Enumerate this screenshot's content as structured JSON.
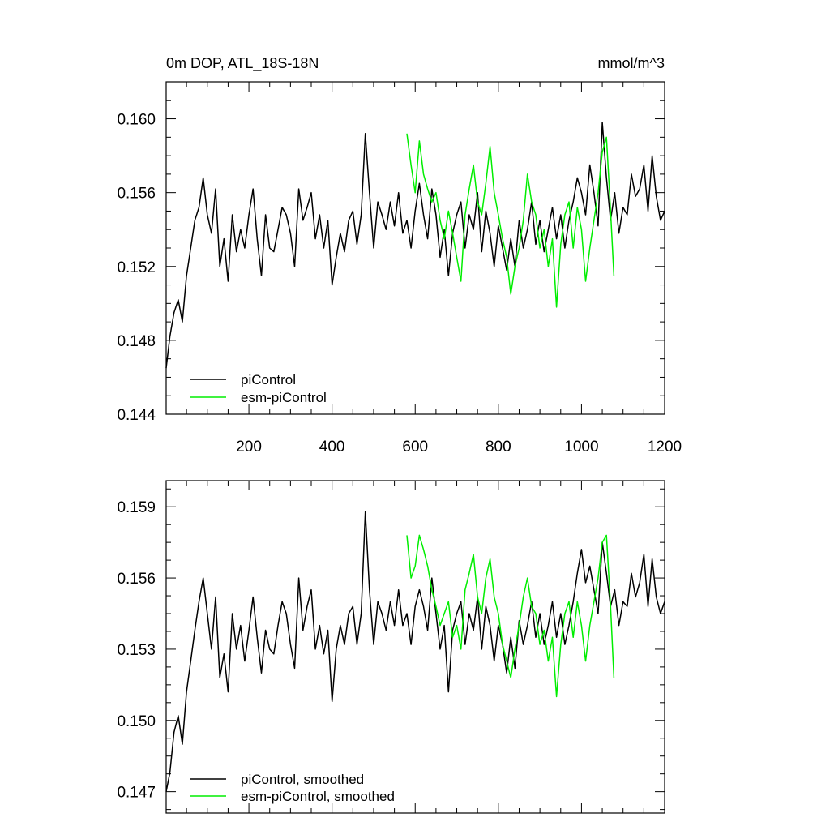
{
  "colors": {
    "piControl": "#000000",
    "esm_piControl": "#00ee00"
  },
  "chart_data": [
    {
      "type": "line",
      "title": "0m DOP, ATL_18S-18N",
      "units": "mmol/m^3",
      "xlim": [
        1,
        1200
      ],
      "ylim": [
        0.144,
        0.162
      ],
      "x_ticks": [
        200,
        400,
        600,
        800,
        1000,
        1200
      ],
      "x_tick_labels": [
        "200",
        "400",
        "600",
        "800",
        "1000",
        "1200"
      ],
      "y_ticks": [
        0.144,
        0.148,
        0.152,
        0.156,
        0.16
      ],
      "y_tick_labels": [
        "0.144",
        "0.148",
        "0.152",
        "0.156",
        "0.160"
      ],
      "legend_position": "bottom-left",
      "series": [
        {
          "name": "piControl",
          "color": "#000000",
          "x": [
            1,
            10,
            20,
            30,
            40,
            50,
            60,
            70,
            80,
            90,
            100,
            110,
            120,
            130,
            140,
            150,
            160,
            170,
            180,
            190,
            200,
            210,
            220,
            230,
            240,
            250,
            260,
            270,
            280,
            290,
            300,
            310,
            320,
            330,
            340,
            350,
            360,
            370,
            380,
            390,
            400,
            410,
            420,
            430,
            440,
            450,
            460,
            470,
            480,
            490,
            500,
            510,
            520,
            530,
            540,
            550,
            560,
            570,
            580,
            590,
            600,
            610,
            620,
            630,
            640,
            650,
            660,
            670,
            680,
            690,
            700,
            710,
            720,
            730,
            740,
            750,
            760,
            770,
            780,
            790,
            800,
            810,
            820,
            830,
            840,
            850,
            860,
            870,
            880,
            890,
            900,
            910,
            920,
            930,
            940,
            950,
            960,
            970,
            980,
            990,
            1000,
            1010,
            1020,
            1030,
            1040,
            1050,
            1060,
            1070,
            1080,
            1090,
            1100,
            1110,
            1120,
            1130,
            1140,
            1150,
            1160,
            1170,
            1180,
            1190,
            1200
          ],
          "y": [
            0.1465,
            0.1482,
            0.1495,
            0.1502,
            0.149,
            0.1515,
            0.153,
            0.1545,
            0.1552,
            0.1568,
            0.1548,
            0.1538,
            0.1562,
            0.152,
            0.1535,
            0.1512,
            0.1548,
            0.1528,
            0.154,
            0.153,
            0.1548,
            0.1562,
            0.1535,
            0.1515,
            0.1548,
            0.153,
            0.1528,
            0.154,
            0.1552,
            0.1548,
            0.1538,
            0.152,
            0.1562,
            0.1545,
            0.1552,
            0.156,
            0.1535,
            0.1548,
            0.153,
            0.1545,
            0.151,
            0.1525,
            0.1538,
            0.1528,
            0.1545,
            0.155,
            0.1532,
            0.1548,
            0.1592,
            0.156,
            0.153,
            0.1555,
            0.1548,
            0.154,
            0.1555,
            0.1542,
            0.156,
            0.1538,
            0.1545,
            0.153,
            0.155,
            0.1565,
            0.1548,
            0.1535,
            0.1562,
            0.1548,
            0.1525,
            0.154,
            0.1515,
            0.1538,
            0.1548,
            0.1555,
            0.153,
            0.1548,
            0.154,
            0.156,
            0.1528,
            0.155,
            0.1538,
            0.152,
            0.1542,
            0.153,
            0.1518,
            0.1535,
            0.152,
            0.1545,
            0.153,
            0.154,
            0.1555,
            0.1532,
            0.1545,
            0.1528,
            0.154,
            0.1552,
            0.1535,
            0.1548,
            0.153,
            0.1545,
            0.1555,
            0.1568,
            0.156,
            0.1548,
            0.1575,
            0.156,
            0.1542,
            0.1598,
            0.1568,
            0.1545,
            0.156,
            0.1538,
            0.1552,
            0.1548,
            0.157,
            0.1558,
            0.1562,
            0.1575,
            0.155,
            0.158,
            0.1558,
            0.1545,
            0.155
          ]
        },
        {
          "name": "esm-piControl",
          "color": "#00ee00",
          "x": [
            580,
            590,
            600,
            610,
            620,
            630,
            640,
            650,
            660,
            670,
            680,
            690,
            700,
            710,
            720,
            730,
            740,
            750,
            760,
            770,
            780,
            790,
            800,
            810,
            820,
            830,
            840,
            850,
            860,
            870,
            880,
            890,
            900,
            910,
            920,
            930,
            940,
            950,
            960,
            970,
            980,
            990,
            1000,
            1010,
            1020,
            1030,
            1040,
            1050,
            1060,
            1070,
            1078
          ],
          "y": [
            0.1592,
            0.1575,
            0.156,
            0.1588,
            0.157,
            0.1562,
            0.1555,
            0.156,
            0.1545,
            0.1535,
            0.155,
            0.1538,
            0.1525,
            0.1512,
            0.1548,
            0.1562,
            0.1575,
            0.1555,
            0.1548,
            0.1565,
            0.1585,
            0.156,
            0.1548,
            0.1535,
            0.1525,
            0.1505,
            0.152,
            0.153,
            0.1545,
            0.157,
            0.1555,
            0.1548,
            0.153,
            0.154,
            0.152,
            0.1535,
            0.1498,
            0.1532,
            0.1548,
            0.1555,
            0.153,
            0.1552,
            0.154,
            0.1512,
            0.153,
            0.1545,
            0.156,
            0.1582,
            0.159,
            0.155,
            0.1515
          ]
        }
      ]
    },
    {
      "type": "line",
      "xlim": [
        1,
        1200
      ],
      "ylim": [
        0.1461,
        0.1601
      ],
      "x_ticks": [
        200,
        400,
        600,
        800,
        1000,
        1200
      ],
      "y_ticks": [
        0.147,
        0.15,
        0.153,
        0.156,
        0.159
      ],
      "y_tick_labels": [
        "0.147",
        "0.150",
        "0.153",
        "0.156",
        "0.159"
      ],
      "legend_position": "bottom-left",
      "series": [
        {
          "name": "piControl, smoothed",
          "color": "#000000",
          "x": [
            1,
            10,
            20,
            30,
            40,
            50,
            60,
            70,
            80,
            90,
            100,
            110,
            120,
            130,
            140,
            150,
            160,
            170,
            180,
            190,
            200,
            210,
            220,
            230,
            240,
            250,
            260,
            270,
            280,
            290,
            300,
            310,
            320,
            330,
            340,
            350,
            360,
            370,
            380,
            390,
            400,
            410,
            420,
            430,
            440,
            450,
            460,
            470,
            480,
            490,
            500,
            510,
            520,
            530,
            540,
            550,
            560,
            570,
            580,
            590,
            600,
            610,
            620,
            630,
            640,
            650,
            660,
            670,
            680,
            690,
            700,
            710,
            720,
            730,
            740,
            750,
            760,
            770,
            780,
            790,
            800,
            810,
            820,
            830,
            840,
            850,
            860,
            870,
            880,
            890,
            900,
            910,
            920,
            930,
            940,
            950,
            960,
            970,
            980,
            990,
            1000,
            1010,
            1020,
            1030,
            1040,
            1050,
            1060,
            1070,
            1080,
            1090,
            1100,
            1110,
            1120,
            1130,
            1140,
            1150,
            1160,
            1170,
            1180,
            1190,
            1200
          ],
          "y": [
            0.147,
            0.1478,
            0.1495,
            0.1502,
            0.149,
            0.1512,
            0.1525,
            0.1538,
            0.155,
            0.156,
            0.1545,
            0.153,
            0.1552,
            0.1518,
            0.1528,
            0.1512,
            0.1545,
            0.153,
            0.154,
            0.1525,
            0.1538,
            0.1552,
            0.1535,
            0.152,
            0.1538,
            0.153,
            0.1528,
            0.154,
            0.155,
            0.1545,
            0.1532,
            0.1522,
            0.156,
            0.1538,
            0.1548,
            0.1555,
            0.153,
            0.154,
            0.1528,
            0.1538,
            0.1508,
            0.153,
            0.154,
            0.1532,
            0.1545,
            0.1548,
            0.1532,
            0.1545,
            0.1588,
            0.1555,
            0.1532,
            0.155,
            0.1545,
            0.1538,
            0.155,
            0.154,
            0.1555,
            0.154,
            0.1545,
            0.1532,
            0.1548,
            0.1555,
            0.1548,
            0.1538,
            0.156,
            0.1545,
            0.153,
            0.154,
            0.1512,
            0.1538,
            0.1545,
            0.155,
            0.1532,
            0.1545,
            0.1538,
            0.1552,
            0.153,
            0.1548,
            0.154,
            0.1525,
            0.154,
            0.1532,
            0.152,
            0.1535,
            0.1522,
            0.1542,
            0.1532,
            0.154,
            0.155,
            0.1535,
            0.1545,
            0.1532,
            0.154,
            0.155,
            0.1535,
            0.1545,
            0.1532,
            0.154,
            0.155,
            0.1562,
            0.1572,
            0.1558,
            0.1565,
            0.1555,
            0.1545,
            0.1575,
            0.1562,
            0.1548,
            0.1555,
            0.154,
            0.155,
            0.1548,
            0.1562,
            0.1552,
            0.1558,
            0.157,
            0.1548,
            0.1568,
            0.1552,
            0.1545,
            0.155
          ]
        },
        {
          "name": "esm-piControl, smoothed",
          "color": "#00ee00",
          "x": [
            580,
            590,
            600,
            610,
            620,
            630,
            640,
            650,
            660,
            670,
            680,
            690,
            700,
            710,
            720,
            730,
            740,
            750,
            760,
            770,
            780,
            790,
            800,
            810,
            820,
            830,
            840,
            850,
            860,
            870,
            880,
            890,
            900,
            910,
            920,
            930,
            940,
            950,
            960,
            970,
            980,
            990,
            1000,
            1010,
            1020,
            1030,
            1040,
            1050,
            1060,
            1070,
            1078
          ],
          "y": [
            0.1578,
            0.156,
            0.1565,
            0.1578,
            0.1572,
            0.1565,
            0.1555,
            0.1548,
            0.154,
            0.1545,
            0.155,
            0.1535,
            0.154,
            0.153,
            0.1555,
            0.1562,
            0.157,
            0.1552,
            0.1545,
            0.156,
            0.1568,
            0.1552,
            0.1545,
            0.1532,
            0.1525,
            0.1518,
            0.153,
            0.154,
            0.1552,
            0.156,
            0.1548,
            0.1545,
            0.1532,
            0.1538,
            0.1525,
            0.1535,
            0.151,
            0.1532,
            0.1545,
            0.155,
            0.1535,
            0.155,
            0.154,
            0.1525,
            0.154,
            0.155,
            0.156,
            0.1575,
            0.1578,
            0.1548,
            0.1518
          ]
        }
      ]
    }
  ]
}
